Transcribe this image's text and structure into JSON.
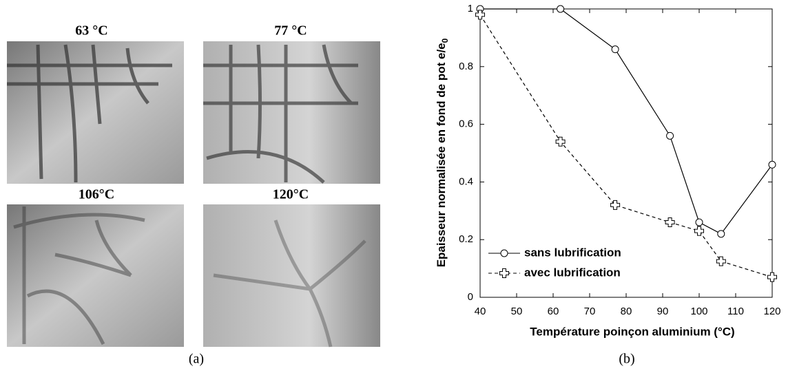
{
  "photos": {
    "labels": [
      "63 °C",
      "77 °C",
      "106°C",
      "120°C"
    ]
  },
  "captions": [
    "(a)",
    "(b)"
  ],
  "chart_data": {
    "type": "line",
    "xlabel": "Température poinçon aluminium (°C)",
    "ylabel": "Epaisseur normalisée en fond de pot e/e",
    "ylabel_subscript": "0",
    "xlim": [
      40,
      120
    ],
    "xticks": [
      40,
      50,
      60,
      70,
      80,
      90,
      100,
      110,
      120
    ],
    "ylim": [
      0,
      1
    ],
    "yticks": [
      0,
      0.2,
      0.4,
      0.6,
      0.8,
      1
    ],
    "legend": "lower left",
    "grid": false,
    "series": [
      {
        "name": "sans lubrification",
        "color": "#000000",
        "dash": "solid",
        "marker": "circle",
        "x": [
          40,
          62,
          77,
          92,
          100,
          106,
          120
        ],
        "values": [
          1,
          1,
          0.86,
          0.56,
          0.26,
          0.22,
          0.46
        ]
      },
      {
        "name": "avec lubrification",
        "color": "#000000",
        "dash": "dashed",
        "marker": "plus",
        "x": [
          40,
          62,
          77,
          92,
          100,
          106,
          120
        ],
        "values": [
          0.98,
          0.54,
          0.32,
          0.26,
          0.23,
          0.125,
          0.07
        ]
      }
    ]
  }
}
